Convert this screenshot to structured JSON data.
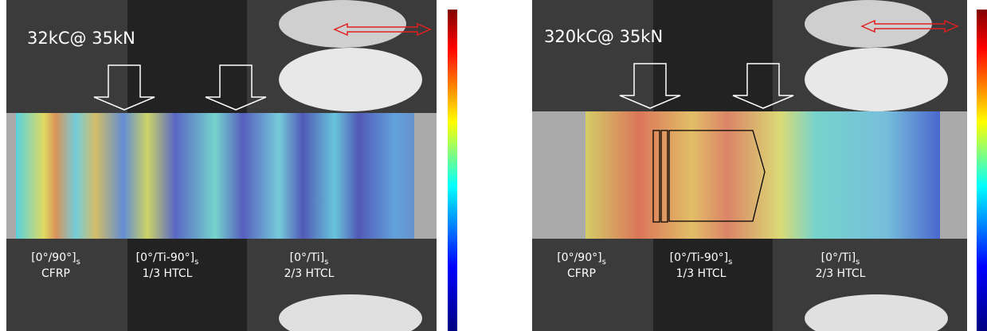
{
  "panels": [
    {
      "title": "32kC@ 35kN",
      "labels": [
        {
          "layup": "[0°/90°]",
          "subscript": "s",
          "material": "CFRP"
        },
        {
          "layup": "[0°/Ti-90°]",
          "subscript": "s",
          "material": "1/3 HTCL"
        },
        {
          "layup": "[0°/Ti]",
          "subscript": "s",
          "material": "2/3 HTCL"
        }
      ]
    },
    {
      "title": "320kC@ 35kN",
      "labels": [
        {
          "layup": "[0°/90°]",
          "subscript": "s",
          "material": "CFRP"
        },
        {
          "layup": "[0°/Ti-90°]",
          "subscript": "s",
          "material": "1/3 HTCL"
        },
        {
          "layup": "[0°/Ti]",
          "subscript": "s",
          "material": "2/3 HTCL"
        }
      ]
    }
  ]
}
